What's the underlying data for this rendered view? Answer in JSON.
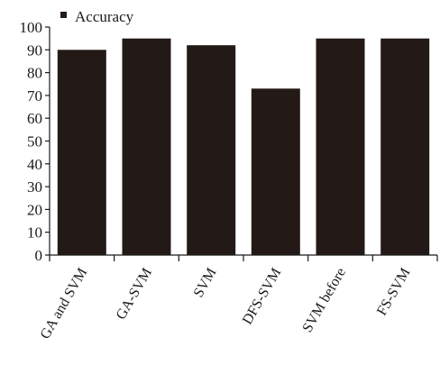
{
  "chart_data": {
    "type": "bar",
    "categories": [
      "GA and SVM",
      "GA-SVM",
      "SVM",
      "DFS-SVM",
      "SVM before",
      "FS-SVM"
    ],
    "series": [
      {
        "name": "Accuracy",
        "values": [
          90,
          95,
          92,
          73,
          95,
          95
        ]
      }
    ],
    "ylim": [
      0,
      100
    ],
    "yticks": [
      0,
      10,
      20,
      30,
      40,
      50,
      60,
      70,
      80,
      90,
      100
    ],
    "xlabel": "",
    "ylabel": "",
    "title": "",
    "grid": false,
    "legend": "top-left",
    "bar_color": "#231a17",
    "axis_color": "#1a1a1a"
  }
}
